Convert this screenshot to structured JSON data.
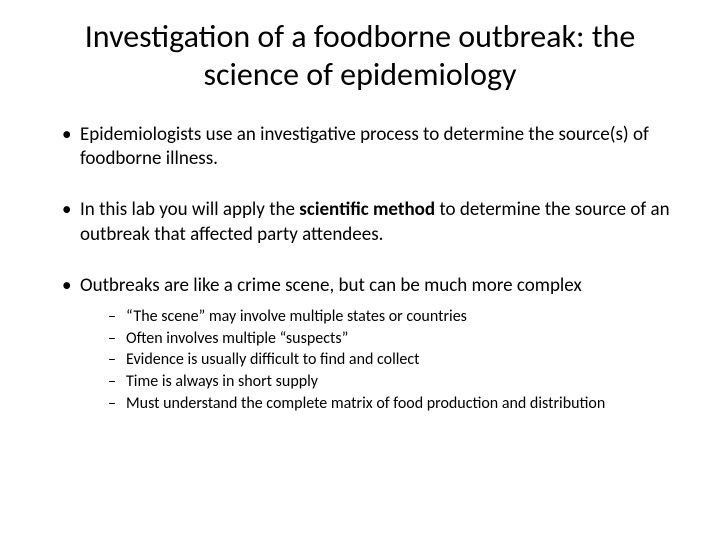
{
  "title": "Investigation of a foodborne outbreak: the science of epidemiology",
  "bullets": [
    {
      "text": "Epidemiologists use an investigative process to determine the source(s) of foodborne illness."
    },
    {
      "parts": [
        {
          "t": "In this lab you will apply the ",
          "bold": false
        },
        {
          "t": "scientific method",
          "bold": true
        },
        {
          "t": " to determine the source of an outbreak that affected party attendees.",
          "bold": false
        }
      ]
    },
    {
      "text": "Outbreaks are like a crime scene, but can be much more complex",
      "sub": [
        "“The scene” may involve multiple states or countries",
        "Often involves multiple “suspects”",
        "Evidence is usually difficult to find and collect",
        "Time is always in short supply",
        "Must understand the complete matrix of food production and distribution"
      ]
    }
  ],
  "styles": {
    "background_color": "#ffffff",
    "text_color": "#000000",
    "title_fontsize": 32,
    "body_fontsize": 19,
    "sub_fontsize": 16,
    "font_family": "Calibri, Arial, sans-serif"
  }
}
